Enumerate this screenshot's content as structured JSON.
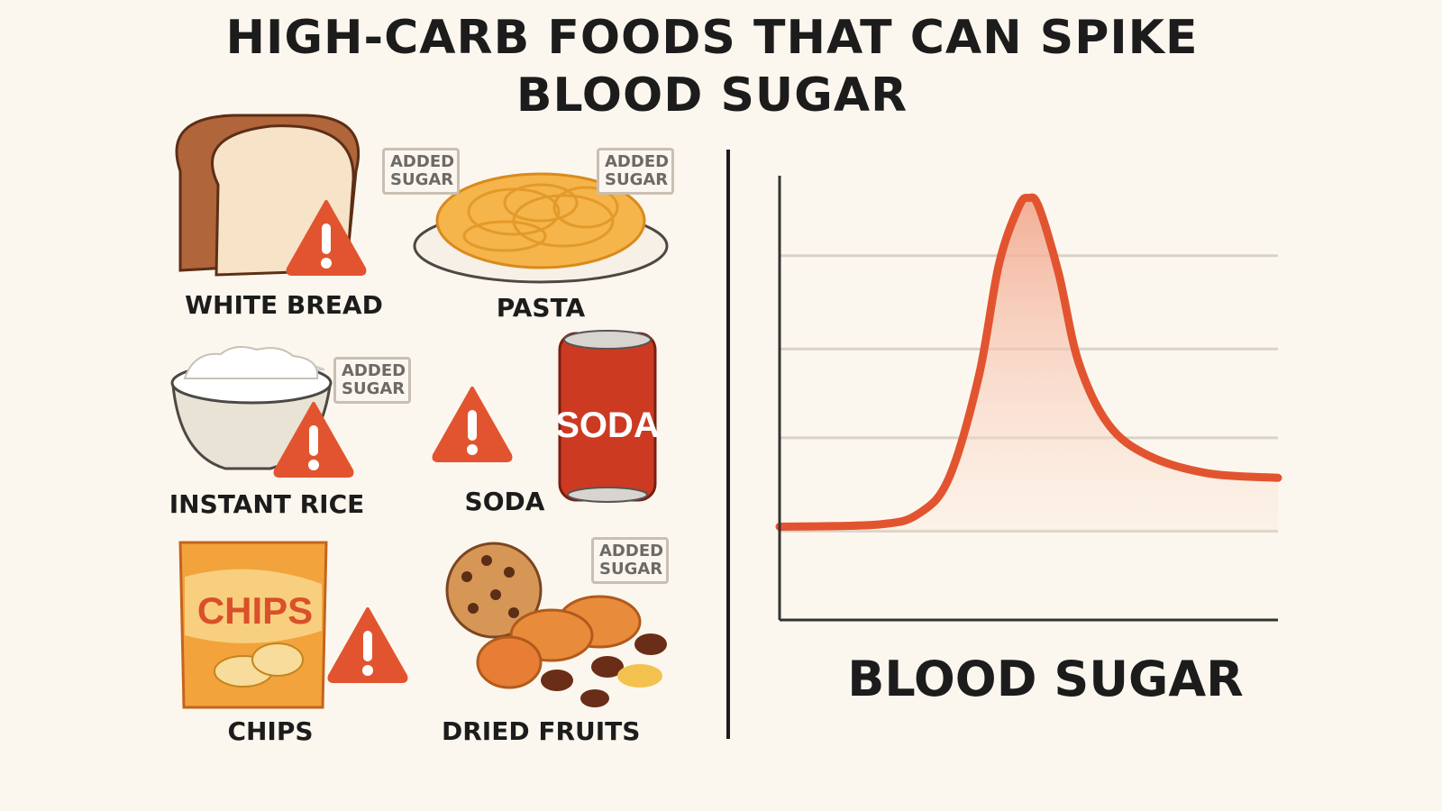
{
  "title": "HIGH-CARB FOODS THAT CAN SPIKE BLOOD SUGAR",
  "title_lines": [
    "HIGH-CARB FOODS THAT CAN SPIKE",
    "BLOOD SUGAR"
  ],
  "tag_text": "ADDED SUGAR",
  "foods": [
    {
      "label": "WHITE BREAD",
      "icon": "bread-icon",
      "warning": true
    },
    {
      "label": "PASTA",
      "icon": "pasta-icon",
      "added_sugar": 2
    },
    {
      "label": "INSTANT RICE",
      "icon": "rice-bowl-icon",
      "warning": true,
      "added_sugar": 1
    },
    {
      "label": "SODA",
      "icon": "soda-can-icon",
      "warning": true,
      "can_text": "SODA"
    },
    {
      "label": "CHIPS",
      "icon": "chips-bag-icon",
      "warning": true,
      "bag_text": "CHIPS"
    },
    {
      "label": "DRIED FRUITS",
      "icon": "dried-fruits-icon",
      "added_sugar": 1
    }
  ],
  "colors": {
    "accent": "#e2542f",
    "background": "#fcf7ee",
    "text": "#1c1c1c",
    "grid": "#d9d2c8"
  },
  "chart_data": {
    "type": "line",
    "title": "",
    "xlabel": "BLOOD SUGAR",
    "ylabel": "",
    "xlim": [
      0,
      100
    ],
    "ylim": [
      0,
      100
    ],
    "grid": true,
    "gridlines": [
      20,
      41,
      61,
      82
    ],
    "series": [
      {
        "name": "blood sugar",
        "x": [
          0,
          20,
          28,
          34,
          40,
          44,
          48,
          50,
          52,
          56,
          60,
          66,
          74,
          86,
          100
        ],
        "y": [
          21,
          21.5,
          24,
          32,
          55,
          80,
          93,
          95,
          93,
          78,
          58,
          44,
          37,
          33,
          32
        ]
      }
    ]
  }
}
